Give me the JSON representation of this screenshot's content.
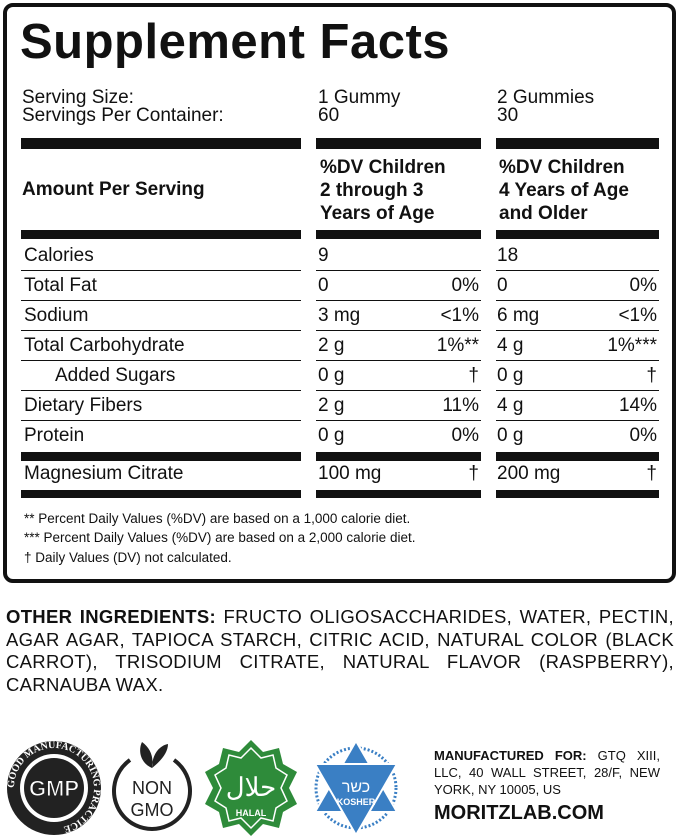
{
  "title": "Supplement Facts",
  "serving": {
    "size_label": "Serving Size:",
    "per_container_label": "Servings Per Container:",
    "col1_size": "1 Gummy",
    "col1_per": "60",
    "col2_size": "2 Gummies",
    "col2_per": "30"
  },
  "header": {
    "amount_label": "Amount Per Serving",
    "col1": [
      "%DV Children",
      "2 through 3",
      "Years of Age"
    ],
    "col2": [
      "%DV Children",
      "4 Years of Age",
      "and Older"
    ]
  },
  "rows": [
    {
      "name": "Calories",
      "a1": "9",
      "d1": "",
      "a2": "18",
      "d2": ""
    },
    {
      "name": "Total Fat",
      "a1": "0",
      "d1": "0%",
      "a2": "0",
      "d2": "0%"
    },
    {
      "name": "Sodium",
      "a1": "3 mg",
      "d1": "<1%",
      "a2": "6 mg",
      "d2": "<1%"
    },
    {
      "name": "Total Carbohydrate",
      "a1": "2 g",
      "d1": "1%**",
      "a2": "4 g",
      "d2": "1%***"
    },
    {
      "name": "Added Sugars",
      "a1": "0 g",
      "d1": "†",
      "a2": "0 g",
      "d2": "†",
      "indent": true
    },
    {
      "name": "Dietary Fibers",
      "a1": "2 g",
      "d1": "11%",
      "a2": "4 g",
      "d2": "14%"
    },
    {
      "name": "Protein",
      "a1": "0 g",
      "d1": "0%",
      "a2": "0 g",
      "d2": "0%"
    },
    {
      "name": "Magnesium Citrate",
      "a1": "100 mg",
      "d1": "†",
      "a2": "200 mg",
      "d2": "†"
    }
  ],
  "footnotes": [
    "** Percent Daily Values (%DV) are based on a 1,000 calorie diet.",
    "*** Percent Daily Values (%DV) are based on a 2,000 calorie diet.",
    "† Daily Values (DV) not calculated."
  ],
  "ingredients": {
    "label": "OTHER INGREDIENTS:",
    "text": " FRUCTO OLIGOSACCHARIDES, WATER, PECTIN, AGAR AGAR, TAPIOCA STARCH, CITRIC ACID, NATURAL COLOR (BLACK CARROT), TRISODIUM CITRATE, NATURAL FLAVOR (RASPBERRY), CARNAUBA WAX."
  },
  "badges": {
    "gmp": "GMP",
    "gmp_ring": "GOOD MANUFACTURING PRACTICE",
    "non_gmo": [
      "NON",
      "GMO"
    ],
    "halal": "HALAL",
    "halal_arabic": "حلال",
    "kosher": "KOSHER",
    "kosher_hebrew": "כשר",
    "halal_color": "#2e8b3a",
    "kosher_color": "#3a7fc4"
  },
  "manufacturer": {
    "label": "MANUFACTURED FOR:",
    "text": " GTQ XIII, LLC, 40 WALL STREET, 28/F, NEW YORK, NY 10005, US",
    "website": "MORITZLAB.COM"
  }
}
